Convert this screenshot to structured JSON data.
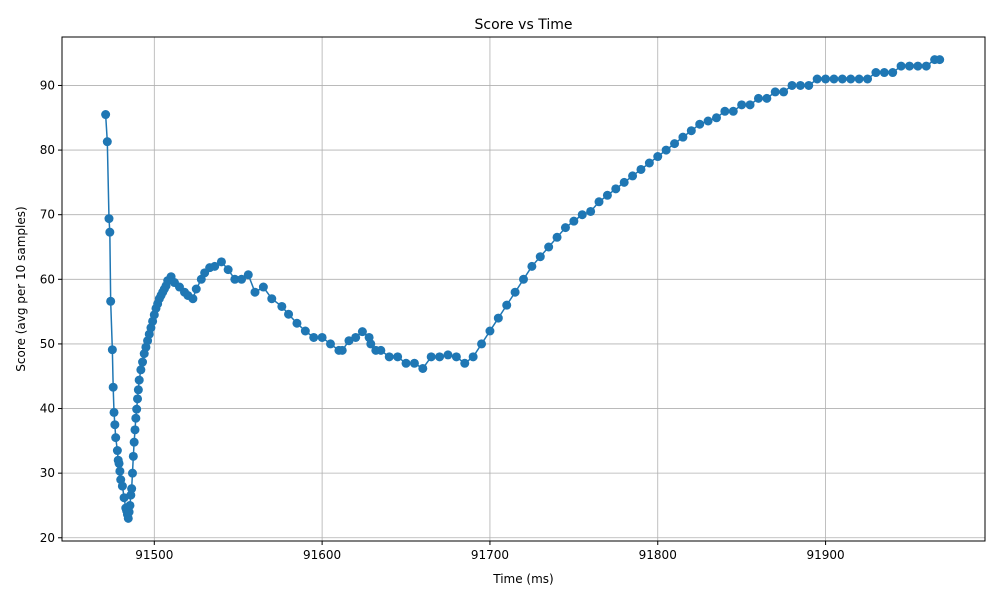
{
  "chart_data": {
    "type": "line",
    "title": "Score vs Time",
    "xlabel": "Time (ms)",
    "ylabel": "Score (avg per 10 samples)",
    "xlim": [
      91445,
      91995
    ],
    "ylim": [
      19.5,
      97.5
    ],
    "xticks": [
      91500,
      91600,
      91700,
      91800,
      91900
    ],
    "yticks": [
      20,
      30,
      40,
      50,
      60,
      70,
      80,
      90
    ],
    "grid": true,
    "marker": "circle",
    "series_color": "#1f77b4",
    "series": [
      {
        "x": [
          91471,
          91472,
          91473,
          91473.5,
          91474,
          91475,
          91475.5,
          91476,
          91476.5,
          91477,
          91478,
          91478.5,
          91479,
          91479.5,
          91480,
          91481,
          91482,
          91483,
          91483.5,
          91484,
          91484.5,
          91485,
          91485.5,
          91486,
          91486.5,
          91487,
          91487.5,
          91488,
          91488.5,
          91489,
          91489.5,
          91490,
          91490.5,
          91491,
          91492,
          91493,
          91494,
          91495,
          91496,
          91497,
          91498,
          91499,
          91500,
          91501,
          91502,
          91503,
          91504,
          91505,
          91506,
          91507,
          91508,
          91510,
          91512,
          91515,
          91518,
          91520,
          91523,
          91525,
          91528,
          91530,
          91533,
          91536,
          91540,
          91544,
          91548,
          91552,
          91556,
          91560,
          91565,
          91570,
          91576,
          91580,
          91585,
          91590,
          91595,
          91600,
          91605,
          91610,
          91612,
          91616,
          91620,
          91624,
          91628,
          91629,
          91632,
          91635,
          91640,
          91645,
          91650,
          91655,
          91660,
          91665,
          91670,
          91675,
          91680,
          91685,
          91690,
          91695,
          91700,
          91705,
          91710,
          91715,
          91720,
          91725,
          91730,
          91735,
          91740,
          91745,
          91750,
          91755,
          91760,
          91765,
          91770,
          91775,
          91780,
          91785,
          91790,
          91795,
          91800,
          91805,
          91810,
          91815,
          91820,
          91825,
          91830,
          91835,
          91840,
          91845,
          91850,
          91855,
          91860,
          91865,
          91870,
          91875,
          91880,
          91885,
          91890,
          91895,
          91900,
          91905,
          91910,
          91915,
          91920,
          91925,
          91930,
          91935,
          91940,
          91945,
          91950,
          91955,
          91960,
          91965,
          91968
        ],
        "y": [
          85.5,
          81.3,
          69.4,
          67.3,
          56.6,
          49.1,
          43.3,
          39.4,
          37.5,
          35.5,
          33.5,
          32.0,
          31.5,
          30.3,
          29.0,
          28.0,
          26.2,
          24.6,
          24.2,
          23.6,
          23.0,
          24.0,
          25.0,
          26.6,
          27.6,
          30.0,
          32.6,
          34.8,
          36.7,
          38.5,
          39.9,
          41.5,
          42.9,
          44.4,
          46.0,
          47.2,
          48.5,
          49.5,
          50.5,
          51.5,
          52.5,
          53.5,
          54.5,
          55.5,
          56.2,
          57.0,
          57.5,
          58.0,
          58.5,
          59.0,
          59.8,
          60.4,
          59.5,
          58.8,
          58.0,
          57.5,
          57.0,
          58.5,
          60.0,
          61.0,
          61.8,
          62.0,
          62.7,
          61.5,
          60.0,
          60.0,
          60.7,
          58.0,
          58.8,
          57.0,
          55.8,
          54.6,
          53.2,
          52.0,
          51.0,
          51.0,
          50.0,
          49.0,
          49.0,
          50.5,
          51.0,
          51.9,
          51.0,
          50.0,
          49.0,
          49.0,
          48.0,
          48.0,
          47.0,
          47.0,
          46.2,
          48.0,
          48.0,
          48.3,
          48.0,
          47.0,
          48.0,
          50.0,
          52.0,
          54.0,
          56.0,
          58.0,
          60.0,
          62.0,
          63.5,
          65.0,
          66.5,
          68.0,
          69.0,
          70.0,
          70.5,
          72.0,
          73.0,
          74.0,
          75.0,
          76.0,
          77.0,
          78.0,
          79.0,
          80.0,
          81.0,
          82.0,
          83.0,
          84.0,
          84.5,
          85.0,
          86.0,
          86.0,
          87.0,
          87.0,
          88.0,
          88.0,
          89.0,
          89.0,
          90.0,
          90.0,
          90.0,
          91.0,
          91.0,
          91.0,
          91.0,
          91.0,
          91.0,
          91.0,
          92.0,
          92.0,
          92.0,
          93.0,
          93.0,
          93.0,
          93.0,
          94.0,
          94.0
        ]
      }
    ]
  }
}
